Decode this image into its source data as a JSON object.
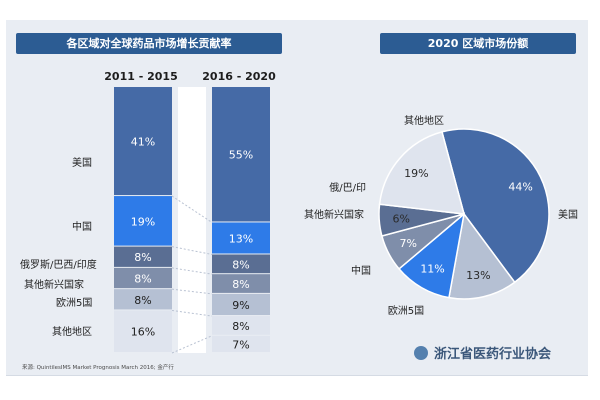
{
  "left_title": "各区域对全球药品市场增长贡献率",
  "right_title": "2020 区域市场份额",
  "source": "来源: QuintilesIMS Market Prognosis March 2016; 金产行",
  "watermark": "浙江省医药行业协会",
  "colors": {
    "band": "#2c5c93",
    "us": "#456aa6",
    "china": "#2e7be8",
    "bric": "#5a6e93",
    "emerging": "#7f8eaa",
    "eu5": "#b5c0d3",
    "other": "#dfe4ee"
  },
  "chart_data": [
    {
      "type": "bar",
      "stacked": true,
      "percent": true,
      "categories": [
        "2011 - 2015",
        "2016 - 2020"
      ],
      "series": [
        {
          "name": "美国",
          "values": [
            41,
            55
          ]
        },
        {
          "name": "中国",
          "values": [
            19,
            13
          ]
        },
        {
          "name": "俄罗斯/巴西/印度",
          "values": [
            8,
            8
          ]
        },
        {
          "name": "其他新兴国家",
          "values": [
            8,
            8
          ]
        },
        {
          "name": "欧洲5国",
          "values": [
            8,
            9
          ]
        },
        {
          "name": "其他地区",
          "values": [
            16,
            8
          ]
        }
      ],
      "data_labels": [
        [
          "41%",
          "19%",
          "8%",
          "8%",
          "8%",
          "16%"
        ],
        [
          "55%",
          "13%",
          "8%",
          "8%",
          "9%",
          "8%",
          "7%"
        ]
      ],
      "extra_segment_2016_2020": 7
    },
    {
      "type": "pie",
      "labels": [
        "美国",
        "欧洲5国",
        "中国",
        "其他新兴国家",
        "俄/巴/印",
        "其他地区"
      ],
      "values": [
        44,
        13,
        11,
        7,
        6,
        19
      ],
      "value_labels": [
        "44%",
        "13%",
        "11%",
        "7%",
        "6%",
        "19%"
      ]
    }
  ]
}
